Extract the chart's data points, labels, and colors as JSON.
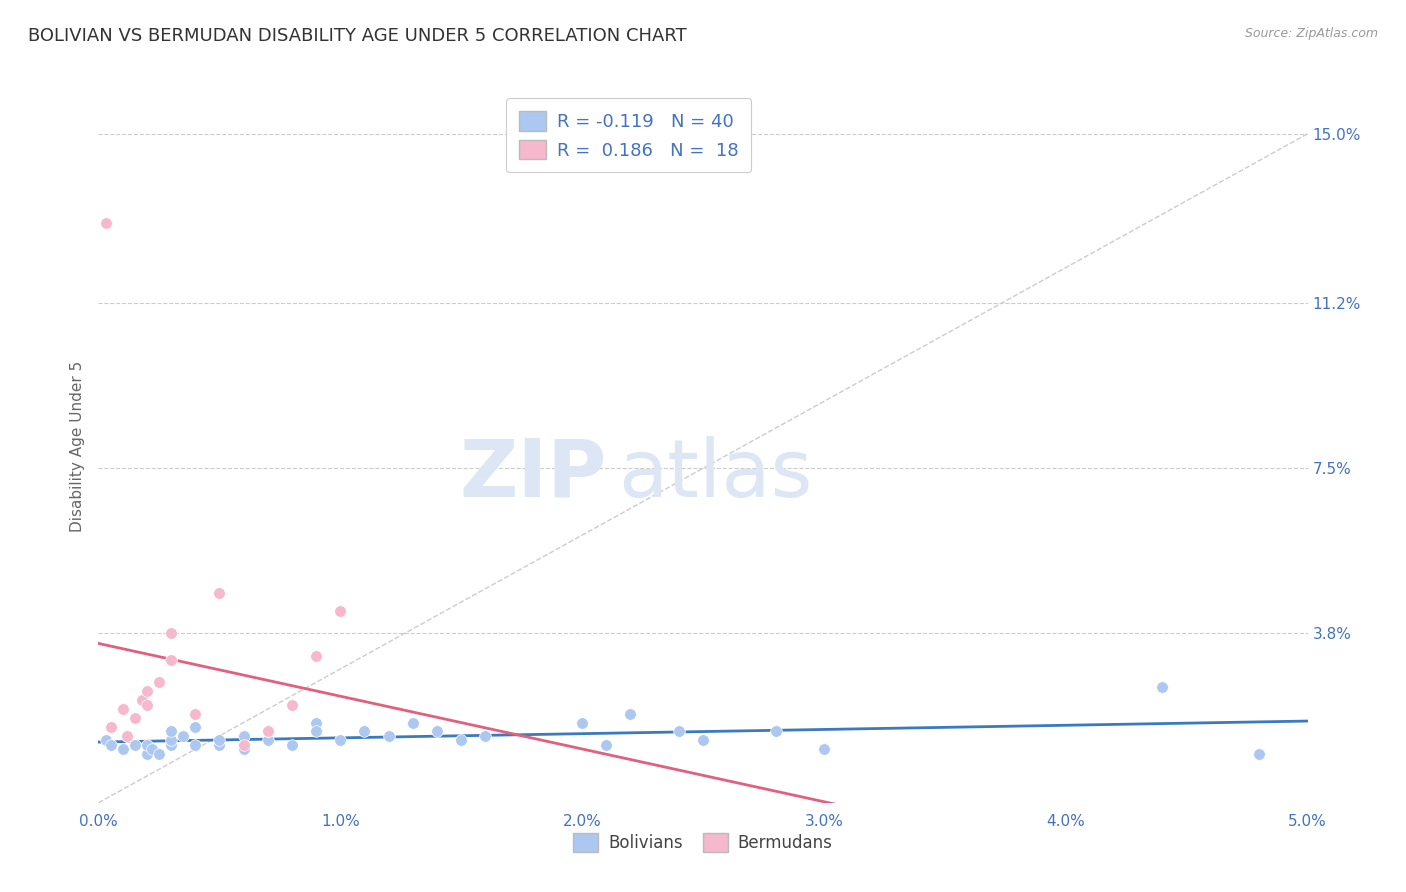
{
  "title": "BOLIVIAN VS BERMUDAN DISABILITY AGE UNDER 5 CORRELATION CHART",
  "source": "Source: ZipAtlas.com",
  "ylabel": "Disability Age Under 5",
  "xlim": [
    0.0,
    0.05
  ],
  "ylim": [
    0.0,
    0.16
  ],
  "R_bolivian": -0.119,
  "N_bolivian": 40,
  "R_bermudan": 0.186,
  "N_bermudan": 18,
  "bolivian_color": "#adc8f0",
  "bermudan_color": "#f5b8cc",
  "trend_bolivian_color": "#3a7abf",
  "trend_bermudan_color": "#e0607e",
  "grid_color": "#cccccc",
  "watermark_color": "#dce6f5",
  "title_color": "#333333",
  "axis_label_color": "#4472c4",
  "tick_color": "#4472c4",
  "legend_label_bolivian": "Bolivians",
  "legend_label_bermudan": "Bermudans",
  "bolivians_x": [
    0.0003,
    0.0005,
    0.001,
    0.0012,
    0.0015,
    0.002,
    0.002,
    0.0022,
    0.0025,
    0.003,
    0.003,
    0.003,
    0.0035,
    0.004,
    0.004,
    0.005,
    0.005,
    0.006,
    0.006,
    0.007,
    0.007,
    0.008,
    0.009,
    0.009,
    0.01,
    0.011,
    0.012,
    0.013,
    0.014,
    0.015,
    0.016,
    0.02,
    0.021,
    0.022,
    0.024,
    0.025,
    0.028,
    0.03,
    0.044,
    0.048
  ],
  "bolivians_y": [
    0.014,
    0.013,
    0.012,
    0.015,
    0.013,
    0.011,
    0.013,
    0.012,
    0.011,
    0.013,
    0.014,
    0.016,
    0.015,
    0.013,
    0.017,
    0.013,
    0.014,
    0.012,
    0.015,
    0.014,
    0.016,
    0.013,
    0.018,
    0.016,
    0.014,
    0.016,
    0.015,
    0.018,
    0.016,
    0.014,
    0.015,
    0.018,
    0.013,
    0.02,
    0.016,
    0.014,
    0.016,
    0.012,
    0.026,
    0.011
  ],
  "bermudans_x": [
    0.0003,
    0.0005,
    0.001,
    0.0012,
    0.0015,
    0.0018,
    0.002,
    0.002,
    0.0025,
    0.003,
    0.003,
    0.004,
    0.005,
    0.006,
    0.007,
    0.008,
    0.009,
    0.01
  ],
  "bermudans_y": [
    0.13,
    0.017,
    0.021,
    0.015,
    0.019,
    0.023,
    0.025,
    0.022,
    0.027,
    0.032,
    0.038,
    0.02,
    0.047,
    0.013,
    0.016,
    0.022,
    0.033,
    0.043
  ],
  "figsize": [
    14.06,
    8.92
  ],
  "dpi": 100,
  "ytick_vals": [
    0.038,
    0.075,
    0.112,
    0.15
  ],
  "ytick_labels": [
    "3.8%",
    "7.5%",
    "11.2%",
    "15.0%"
  ],
  "xtick_vals": [
    0.0,
    0.01,
    0.02,
    0.03,
    0.04,
    0.05
  ],
  "xtick_labels": [
    "0.0%",
    "1.0%",
    "2.0%",
    "3.0%",
    "4.0%",
    "5.0%"
  ]
}
